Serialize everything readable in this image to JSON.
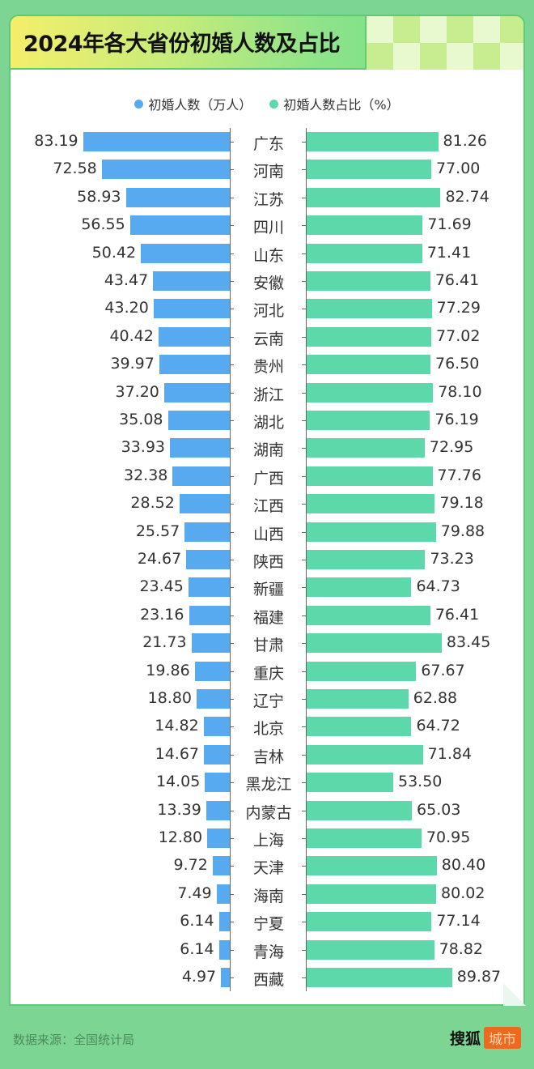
{
  "header": {
    "title": "2024年各大省份初婚人数及占比"
  },
  "legend": [
    {
      "label": "初婚人数（万人）",
      "color": "#58aaf0"
    },
    {
      "label": "初婚人数占比（%）",
      "color": "#5dd8ab"
    }
  ],
  "footer": {
    "source": "数据来源：全国统计局",
    "logo_text": "搜狐",
    "logo_badge": "城市"
  },
  "colors": {
    "background": "#7dd594",
    "blue_bar": "#58aaf0",
    "green_bar": "#5dd8ab",
    "logo_badge": "#ec6a1e"
  },
  "chart_data": {
    "type": "bar",
    "title": "2024年各大省份初婚人数及占比",
    "orientation": "horizontal-butterfly",
    "categories": [
      "广东",
      "河南",
      "江苏",
      "四川",
      "山东",
      "安徽",
      "河北",
      "云南",
      "贵州",
      "浙江",
      "湖北",
      "湖南",
      "广西",
      "江西",
      "山西",
      "陕西",
      "新疆",
      "福建",
      "甘肃",
      "重庆",
      "辽宁",
      "北京",
      "吉林",
      "黑龙江",
      "内蒙古",
      "上海",
      "天津",
      "海南",
      "宁夏",
      "青海",
      "西藏"
    ],
    "series": [
      {
        "name": "初婚人数（万人）",
        "values": [
          83.19,
          72.58,
          58.93,
          56.55,
          50.42,
          43.47,
          43.2,
          40.42,
          39.97,
          37.2,
          35.08,
          33.93,
          32.38,
          28.52,
          25.57,
          24.67,
          23.45,
          23.16,
          21.73,
          19.86,
          18.8,
          14.82,
          14.67,
          14.05,
          13.39,
          12.8,
          9.72,
          7.49,
          6.14,
          6.14,
          4.97
        ]
      },
      {
        "name": "初婚人数占比（%）",
        "values": [
          81.26,
          77.0,
          82.74,
          71.69,
          71.41,
          76.41,
          77.29,
          77.02,
          76.5,
          78.1,
          76.19,
          72.95,
          77.76,
          79.18,
          79.88,
          73.23,
          64.73,
          76.41,
          83.45,
          67.67,
          62.88,
          64.72,
          71.84,
          53.5,
          65.03,
          70.95,
          80.4,
          80.02,
          77.14,
          78.82,
          89.87
        ]
      }
    ],
    "labels_text": {
      "left": [
        "83.19",
        "72.58",
        "58.93",
        "56.55",
        "50.42",
        "43.47",
        "43.20",
        "40.42",
        "39.97",
        "37.20",
        "35.08",
        "33.93",
        "32.38",
        "28.52",
        "25.57",
        "24.67",
        "23.45",
        "23.16",
        "21.73",
        "19.86",
        "18.80",
        "14.82",
        "14.67",
        "14.05",
        "13.39",
        "12.80",
        "9.72",
        "7.49",
        "6.14",
        "6.14",
        "4.97"
      ],
      "right": [
        "81.26",
        "77.00",
        "82.74",
        "71.69",
        "71.41",
        "76.41",
        "77.29",
        "77.02",
        "76.50",
        "78.10",
        "76.19",
        "72.95",
        "77.76",
        "79.18",
        "79.88",
        "73.23",
        "64.73",
        "76.41",
        "83.45",
        "67.67",
        "62.88",
        "64.72",
        "71.84",
        "53.50",
        "65.03",
        "70.95",
        "80.40",
        "80.02",
        "77.14",
        "78.82",
        "89.87"
      ]
    },
    "legend_position": "top",
    "grid": false
  }
}
